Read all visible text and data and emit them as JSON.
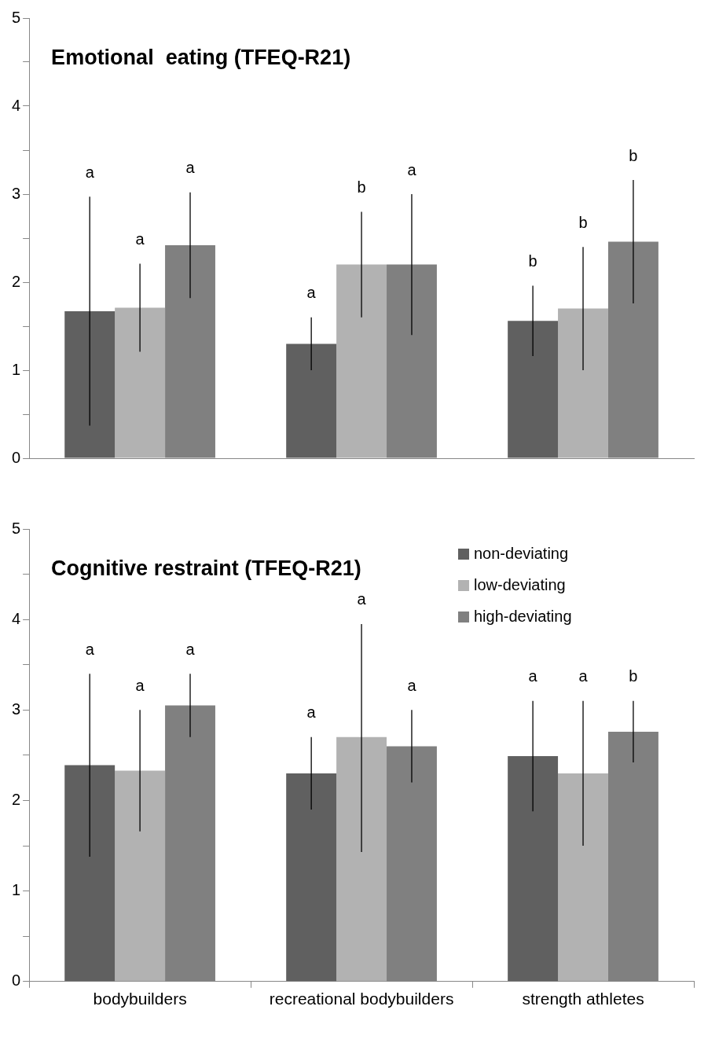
{
  "chart_data": [
    {
      "type": "bar",
      "title": "Emotional  eating (TFEQ-R21)",
      "categories": [
        null,
        null,
        null
      ],
      "ylim": [
        0,
        5
      ],
      "yticks": [
        0,
        {
          "value": 0.5,
          "label": null
        },
        1,
        {
          "value": 1.5,
          "label": null
        },
        2,
        {
          "value": 2.5,
          "label": null
        },
        3,
        {
          "value": 3.5,
          "label": null
        },
        4,
        {
          "value": 4.5,
          "label": null
        },
        5
      ],
      "grid": false,
      "tick_labels": "y",
      "series": [
        {
          "color": "#606060",
          "values": [
            1.67,
            1.3,
            1.56
          ],
          "errors": [
            [
              0.37,
              2.97
            ],
            [
              1.0,
              1.6
            ],
            [
              1.16,
              1.96
            ]
          ]
        },
        {
          "color": "#b2b2b2",
          "values": [
            1.71,
            2.2,
            1.7
          ],
          "errors": [
            [
              1.21,
              2.21
            ],
            [
              1.6,
              2.8
            ],
            [
              1.0,
              2.4
            ]
          ]
        },
        {
          "color": "#808080",
          "values": [
            2.42,
            2.2,
            2.46
          ],
          "errors": [
            [
              1.82,
              3.02
            ],
            [
              1.4,
              3.0
            ],
            [
              1.76,
              3.16
            ]
          ]
        }
      ],
      "annotations": [
        "a",
        "a",
        "a",
        "a",
        "b",
        "a",
        "b",
        "b",
        "b"
      ]
    },
    {
      "type": "bar",
      "title": "Cognitive restraint (TFEQ-R21)",
      "categories": [
        "bodybuilders",
        "recreational bodybuilders",
        "strength athletes"
      ],
      "ylim": [
        0,
        5
      ],
      "yticks": [
        0,
        {
          "value": 0.5,
          "label": null
        },
        1,
        {
          "value": 1.5,
          "label": null
        },
        2,
        {
          "value": 2.5,
          "label": null
        },
        3,
        {
          "value": 3.5,
          "label": null
        },
        4,
        {
          "value": 4.5,
          "label": null
        },
        5
      ],
      "grid": false,
      "legend": "top right",
      "series": [
        {
          "name": "non-deviating",
          "color": "#606060",
          "values": [
            2.39,
            2.3,
            2.49
          ],
          "errors": [
            [
              1.38,
              3.4
            ],
            [
              1.9,
              2.7
            ],
            [
              1.88,
              3.1
            ]
          ]
        },
        {
          "name": "low-deviating",
          "color": "#b2b2b2",
          "values": [
            2.33,
            2.7,
            2.3
          ],
          "errors": [
            [
              1.66,
              3.0
            ],
            [
              1.43,
              3.95
            ],
            [
              1.5,
              3.1
            ]
          ]
        },
        {
          "name": "high-deviating",
          "color": "#808080",
          "values": [
            3.05,
            2.6,
            2.76
          ],
          "errors": [
            [
              2.7,
              3.4
            ],
            [
              2.2,
              3.0
            ],
            [
              2.42,
              3.1
            ]
          ]
        }
      ],
      "annotations": [
        "a",
        "a",
        "a",
        "a",
        "a",
        "a",
        "a",
        "a",
        "b"
      ]
    }
  ]
}
